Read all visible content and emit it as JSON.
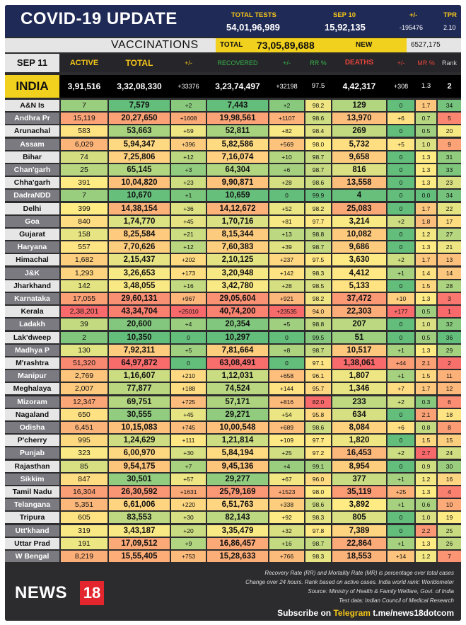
{
  "header": {
    "title": "COVID-19 UPDATE",
    "total_tests_label": "TOTAL TESTS",
    "total_tests": "54,01,96,989",
    "date_label": "SEP 10",
    "daily_tests": "15,92,135",
    "change_label": "+/-",
    "change": "-195476",
    "tpr_label": "TPR",
    "tpr": "2.10"
  },
  "vaccinations": {
    "title": "VACCINATIONS",
    "total_label": "TOTAL",
    "total": "73,05,89,688",
    "new_label": "NEW",
    "new": "6527,175"
  },
  "columns": {
    "date": "SEP 11",
    "active": "ACTIVE",
    "total": "TOTAL",
    "total_change": "+/-",
    "recovered": "RECOVERED",
    "recovered_change": "+/-",
    "rr": "RR %",
    "deaths": "DEATHS",
    "deaths_change": "+/-",
    "mr": "MR %",
    "rank": "Rank"
  },
  "india": {
    "name": "INDIA",
    "active": "3,91,516",
    "total": "3,32,08,330",
    "total_change": "+33376",
    "recovered": "3,23,74,497",
    "recovered_change": "+32198",
    "rr": "97.5",
    "deaths": "4,42,317",
    "deaths_change": "+308",
    "mr": "1.3",
    "rank": "2"
  },
  "rows": [
    {
      "state": "A&N Is",
      "active": "7",
      "total": "7,579",
      "tc": "+2",
      "recovered": "7,443",
      "rc": "+2",
      "rr": "98.2",
      "deaths": "129",
      "dc": "0",
      "mr": "1.7",
      "rank": "34"
    },
    {
      "state": "Andhra Pr",
      "active": "15,119",
      "total": "20,27,650",
      "tc": "+1608",
      "recovered": "19,98,561",
      "rc": "+1107",
      "rr": "98.6",
      "deaths": "13,970",
      "dc": "+6",
      "mr": "0.7",
      "rank": "5"
    },
    {
      "state": "Arunachal",
      "active": "583",
      "total": "53,663",
      "tc": "+59",
      "recovered": "52,811",
      "rc": "+82",
      "rr": "98.4",
      "deaths": "269",
      "dc": "0",
      "mr": "0.5",
      "rank": "20"
    },
    {
      "state": "Assam",
      "active": "6,029",
      "total": "5,94,347",
      "tc": "+396",
      "recovered": "5,82,586",
      "rc": "+569",
      "rr": "98.0",
      "deaths": "5,732",
      "dc": "+5",
      "mr": "1.0",
      "rank": "9"
    },
    {
      "state": "Bihar",
      "active": "74",
      "total": "7,25,806",
      "tc": "+12",
      "recovered": "7,16,074",
      "rc": "+10",
      "rr": "98.7",
      "deaths": "9,658",
      "dc": "0",
      "mr": "1.3",
      "rank": "31"
    },
    {
      "state": "Chan'garh",
      "active": "25",
      "total": "65,145",
      "tc": "+3",
      "recovered": "64,304",
      "rc": "+6",
      "rr": "98.7",
      "deaths": "816",
      "dc": "0",
      "mr": "1.3",
      "rank": "33"
    },
    {
      "state": "Chha'garh",
      "active": "391",
      "total": "10,04,820",
      "tc": "+23",
      "recovered": "9,90,871",
      "rc": "+28",
      "rr": "98.6",
      "deaths": "13,558",
      "dc": "0",
      "mr": "1.3",
      "rank": "23"
    },
    {
      "state": "DadraNDD",
      "active": "7",
      "total": "10,670",
      "tc": "+1",
      "recovered": "10,659",
      "rc": "0",
      "rr": "99.9",
      "deaths": "4",
      "dc": "0",
      "mr": "0.0",
      "rank": "34"
    },
    {
      "state": "Delhi",
      "active": "399",
      "total": "14,38,154",
      "tc": "+36",
      "recovered": "14,12,672",
      "rc": "+52",
      "rr": "98.2",
      "deaths": "25,083",
      "dc": "0",
      "mr": "1.7",
      "rank": "22"
    },
    {
      "state": "Goa",
      "active": "840",
      "total": "1,74,770",
      "tc": "+45",
      "recovered": "1,70,716",
      "rc": "+81",
      "rr": "97.7",
      "deaths": "3,214",
      "dc": "+2",
      "mr": "1.8",
      "rank": "17"
    },
    {
      "state": "Gujarat",
      "active": "158",
      "total": "8,25,584",
      "tc": "+21",
      "recovered": "8,15,344",
      "rc": "+13",
      "rr": "98.8",
      "deaths": "10,082",
      "dc": "0",
      "mr": "1.2",
      "rank": "27"
    },
    {
      "state": "Haryana",
      "active": "557",
      "total": "7,70,626",
      "tc": "+12",
      "recovered": "7,60,383",
      "rc": "+39",
      "rr": "98.7",
      "deaths": "9,686",
      "dc": "0",
      "mr": "1.3",
      "rank": "21"
    },
    {
      "state": "Himachal",
      "active": "1,682",
      "total": "2,15,437",
      "tc": "+202",
      "recovered": "2,10,125",
      "rc": "+237",
      "rr": "97.5",
      "deaths": "3,630",
      "dc": "+2",
      "mr": "1.7",
      "rank": "13"
    },
    {
      "state": "J&K",
      "active": "1,293",
      "total": "3,26,653",
      "tc": "+173",
      "recovered": "3,20,948",
      "rc": "+142",
      "rr": "98.3",
      "deaths": "4,412",
      "dc": "+1",
      "mr": "1.4",
      "rank": "14"
    },
    {
      "state": "Jharkhand",
      "active": "142",
      "total": "3,48,055",
      "tc": "+16",
      "recovered": "3,42,780",
      "rc": "+28",
      "rr": "98.5",
      "deaths": "5,133",
      "dc": "0",
      "mr": "1.5",
      "rank": "28"
    },
    {
      "state": "Karnataka",
      "active": "17,055",
      "total": "29,60,131",
      "tc": "+967",
      "recovered": "29,05,604",
      "rc": "+921",
      "rr": "98.2",
      "deaths": "37,472",
      "dc": "+10",
      "mr": "1.3",
      "rank": "3"
    },
    {
      "state": "Kerala",
      "active": "2,38,201",
      "total": "43,34,704",
      "tc": "+25010",
      "recovered": "40,74,200",
      "rc": "+23535",
      "rr": "94.0",
      "deaths": "22,303",
      "dc": "+177",
      "mr": "0.5",
      "rank": "1"
    },
    {
      "state": "Ladakh",
      "active": "39",
      "total": "20,600",
      "tc": "+4",
      "recovered": "20,354",
      "rc": "+5",
      "rr": "98.8",
      "deaths": "207",
      "dc": "0",
      "mr": "1.0",
      "rank": "32"
    },
    {
      "state": "Lak'dweep",
      "active": "2",
      "total": "10,350",
      "tc": "0",
      "recovered": "10,297",
      "rc": "0",
      "rr": "99.5",
      "deaths": "51",
      "dc": "0",
      "mr": "0.5",
      "rank": "36"
    },
    {
      "state": "Madhya P",
      "active": "130",
      "total": "7,92,311",
      "tc": "+5",
      "recovered": "7,81,664",
      "rc": "+8",
      "rr": "98.7",
      "deaths": "10,517",
      "dc": "+1",
      "mr": "1.3",
      "rank": "29"
    },
    {
      "state": "M'rashtra",
      "active": "51,320",
      "total": "64,97,872",
      "tc": "0",
      "recovered": "63,08,491",
      "rc": "0",
      "rr": "97.1",
      "deaths": "1,38,061",
      "dc": "+44",
      "mr": "2.1",
      "rank": "2"
    },
    {
      "state": "Manipur",
      "active": "2,769",
      "total": "1,16,607",
      "tc": "+210",
      "recovered": "1,12,031",
      "rc": "+658",
      "rr": "96.1",
      "deaths": "1,807",
      "dc": "+1",
      "mr": "1.5",
      "rank": "11"
    },
    {
      "state": "Meghalaya",
      "active": "2,007",
      "total": "77,877",
      "tc": "+188",
      "recovered": "74,524",
      "rc": "+144",
      "rr": "95.7",
      "deaths": "1,346",
      "dc": "+7",
      "mr": "1.7",
      "rank": "12"
    },
    {
      "state": "Mizoram",
      "active": "12,347",
      "total": "69,751",
      "tc": "+725",
      "recovered": "57,171",
      "rc": "+816",
      "rr": "82.0",
      "deaths": "233",
      "dc": "+2",
      "mr": "0.3",
      "rank": "6"
    },
    {
      "state": "Nagaland",
      "active": "650",
      "total": "30,555",
      "tc": "+45",
      "recovered": "29,271",
      "rc": "+54",
      "rr": "95.8",
      "deaths": "634",
      "dc": "0",
      "mr": "2.1",
      "rank": "18"
    },
    {
      "state": "Odisha",
      "active": "6,451",
      "total": "10,15,083",
      "tc": "+745",
      "recovered": "10,00,548",
      "rc": "+689",
      "rr": "98.6",
      "deaths": "8,084",
      "dc": "+6",
      "mr": "0.8",
      "rank": "8"
    },
    {
      "state": "P'cherry",
      "active": "995",
      "total": "1,24,629",
      "tc": "+111",
      "recovered": "1,21,814",
      "rc": "+109",
      "rr": "97.7",
      "deaths": "1,820",
      "dc": "0",
      "mr": "1.5",
      "rank": "15"
    },
    {
      "state": "Punjab",
      "active": "323",
      "total": "6,00,970",
      "tc": "+30",
      "recovered": "5,84,194",
      "rc": "+25",
      "rr": "97.2",
      "deaths": "16,453",
      "dc": "+2",
      "mr": "2.7",
      "rank": "24"
    },
    {
      "state": "Rajasthan",
      "active": "85",
      "total": "9,54,175",
      "tc": "+7",
      "recovered": "9,45,136",
      "rc": "+4",
      "rr": "99.1",
      "deaths": "8,954",
      "dc": "0",
      "mr": "0.9",
      "rank": "30"
    },
    {
      "state": "Sikkim",
      "active": "847",
      "total": "30,501",
      "tc": "+57",
      "recovered": "29,277",
      "rc": "+67",
      "rr": "96.0",
      "deaths": "377",
      "dc": "+1",
      "mr": "1.2",
      "rank": "16"
    },
    {
      "state": "Tamil Nadu",
      "active": "16,304",
      "total": "26,30,592",
      "tc": "+1631",
      "recovered": "25,79,169",
      "rc": "+1523",
      "rr": "98.0",
      "deaths": "35,119",
      "dc": "+25",
      "mr": "1.3",
      "rank": "4"
    },
    {
      "state": "Telangana",
      "active": "5,351",
      "total": "6,61,006",
      "tc": "+220",
      "recovered": "6,51,763",
      "rc": "+338",
      "rr": "98.6",
      "deaths": "3,892",
      "dc": "+1",
      "mr": "0.6",
      "rank": "10"
    },
    {
      "state": "Tripura",
      "active": "605",
      "total": "83,553",
      "tc": "+30",
      "recovered": "82,143",
      "rc": "+92",
      "rr": "98.3",
      "deaths": "805",
      "dc": "0",
      "mr": "1.0",
      "rank": "19"
    },
    {
      "state": "Utt'khand",
      "active": "319",
      "total": "3,43,187",
      "tc": "+20",
      "recovered": "3,35,479",
      "rc": "+32",
      "rr": "97.8",
      "deaths": "7,389",
      "dc": "0",
      "mr": "2.2",
      "rank": "25"
    },
    {
      "state": "Uttar Prad",
      "active": "191",
      "total": "17,09,512",
      "tc": "+9",
      "recovered": "16,86,457",
      "rc": "+16",
      "rr": "98.7",
      "deaths": "22,864",
      "dc": "+1",
      "mr": "1.3",
      "rank": "26"
    },
    {
      "state": "W Bengal",
      "active": "8,219",
      "total": "15,55,405",
      "tc": "+753",
      "recovered": "15,28,633",
      "rc": "+766",
      "rr": "98.3",
      "deaths": "18,553",
      "dc": "+14",
      "mr": "1.2",
      "rank": "7"
    }
  ],
  "footer": {
    "logo_text": "NEWS",
    "logo_number": "18",
    "note1": "Recovery Rate (RR) and Mortality Rate (MR) is percentage over total cases",
    "note2": "Change over 24 hours. Rank based on active cases. India world rank: Worldometer",
    "note3": "Source: Ministry of Health & Family Welfare, Govt. of India",
    "note4": "Test data: Indian Council of Medical Research",
    "subscribe_prefix": "Subscribe on",
    "subscribe_app": "Telegram",
    "subscribe_link": "t.me/news18dotcom"
  },
  "colors": {
    "header_bg": "#1f2a57",
    "accent_yellow": "#f5c518",
    "brand_red": "#e3262e",
    "state_alt_bg": "#7a7a80",
    "state_bg": "#e6e6e6"
  }
}
